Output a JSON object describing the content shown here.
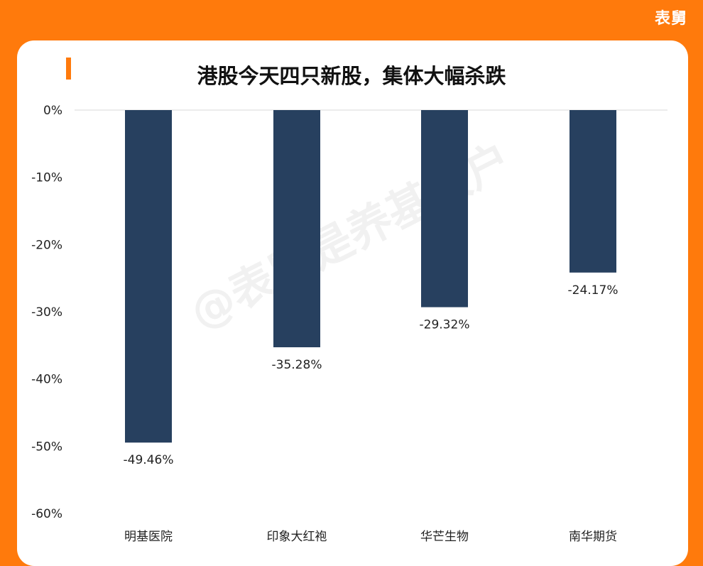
{
  "brand": "表舅",
  "watermark": "@表舅是养基大户",
  "chart_data": {
    "type": "bar",
    "title": "港股今天四只新股，集体大幅杀跌",
    "xlabel": "",
    "ylabel": "",
    "categories": [
      "明基医院",
      "印象大红袍",
      "华芒生物",
      "南华期货"
    ],
    "values": [
      -49.46,
      -35.28,
      -29.32,
      -24.17
    ],
    "data_labels": [
      "-49.46%",
      "-35.28%",
      "-29.32%",
      "-24.17%"
    ],
    "ylim": [
      -60,
      0
    ],
    "yticks": [
      0,
      -10,
      -20,
      -30,
      -40,
      -50,
      -60
    ],
    "ytick_labels": [
      "0%",
      "-10%",
      "-20%",
      "-30%",
      "-40%",
      "-50%",
      "-60%"
    ],
    "grid": false,
    "legend": "none",
    "colors": {
      "bar": "#27405f",
      "accent": "#ff7a0c",
      "baseline": "#d9d9d9"
    }
  }
}
